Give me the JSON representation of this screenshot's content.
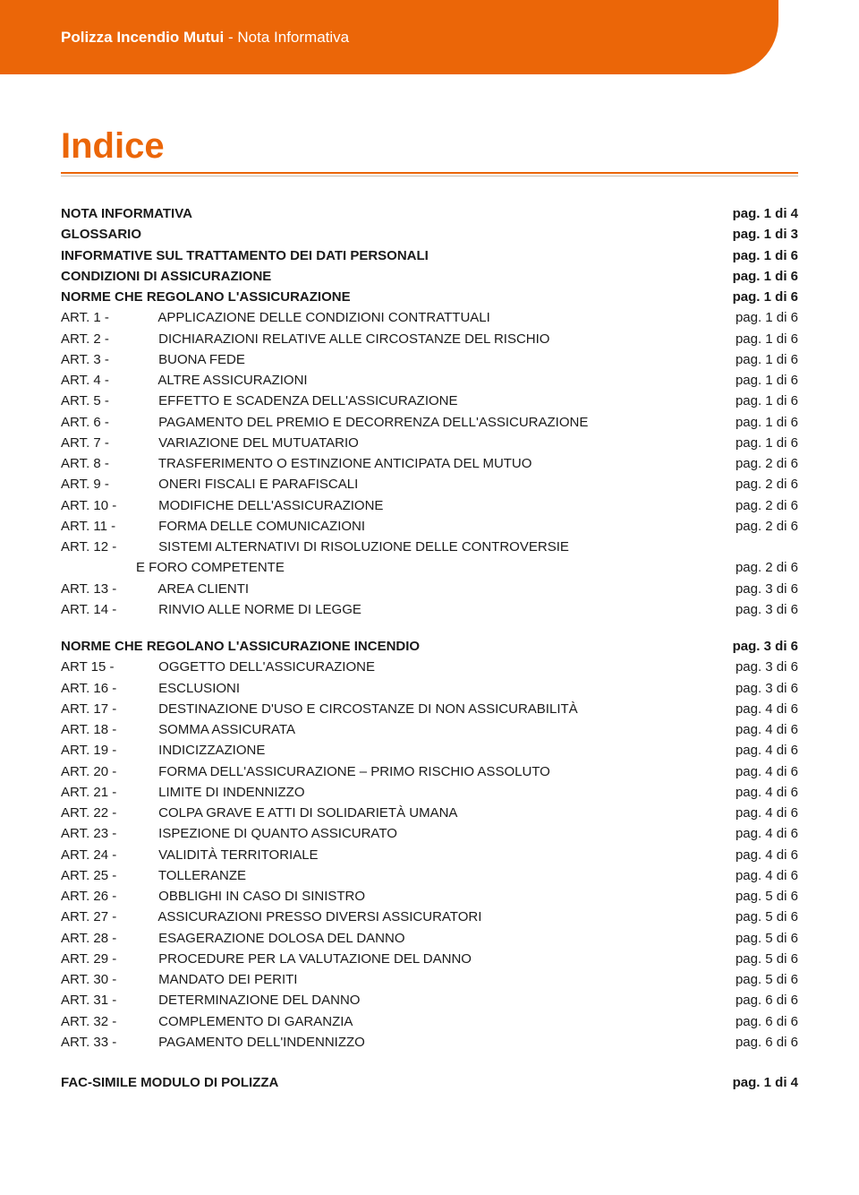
{
  "colors": {
    "brand": "#eb6608",
    "text": "#1a1a1a",
    "rule_light": "#c9bcae",
    "bg": "#ffffff",
    "header_text": "#ffffff"
  },
  "typography": {
    "body_font": "Arial",
    "title_size_pt": 30,
    "body_size_pt": 11,
    "header_size_pt": 13
  },
  "header": {
    "bold": "Polizza Incendio Mutui",
    "rest": " - Nota Informativa"
  },
  "title": "Indice",
  "sections": [
    {
      "rows": [
        {
          "label": "NOTA INFORMATIVA",
          "page": "pag. 1 di 4",
          "bold": true
        },
        {
          "label": "GLOSSARIO",
          "page": "pag. 1 di 3",
          "bold": true
        },
        {
          "label": "INFORMATIVE SUL TRATTAMENTO DEI DATI PERSONALI",
          "page": "pag. 1 di 6",
          "bold": true
        },
        {
          "label": "CONDIZIONI DI ASSICURAZIONE",
          "page": "pag. 1 di 6",
          "bold": true
        },
        {
          "label": "NORME CHE REGOLANO L'ASSICURAZIONE",
          "page": "pag. 1 di 6",
          "bold": true
        },
        {
          "prefix": "ART. 1   -",
          "label": "APPLICAZIONE DELLE CONDIZIONI CONTRATTUALI",
          "page": "pag. 1 di 6"
        },
        {
          "prefix": "ART. 2   -",
          "label": "DICHIARAZIONI RELATIVE ALLE CIRCOSTANZE DEL RISCHIO",
          "page": "pag. 1 di 6"
        },
        {
          "prefix": "ART. 3   -",
          "label": "BUONA FEDE",
          "page": "pag. 1 di 6"
        },
        {
          "prefix": "ART. 4   -",
          "label": "ALTRE ASSICURAZIONI",
          "page": "pag. 1 di 6"
        },
        {
          "prefix": "ART. 5   -",
          "label": "EFFETTO E SCADENZA DELL'ASSICURAZIONE",
          "page": "pag. 1 di 6"
        },
        {
          "prefix": "ART. 6   -",
          "label": "PAGAMENTO DEL PREMIO E DECORRENZA DELL'ASSICURAZIONE",
          "page": "pag. 1 di 6"
        },
        {
          "prefix": "ART. 7   -",
          "label": "VARIAZIONE DEL MUTUATARIO",
          "page": "pag. 1 di 6"
        },
        {
          "prefix": "ART. 8   -",
          "label": "TRASFERIMENTO O ESTINZIONE ANTICIPATA DEL MUTUO",
          "page": "pag. 2 di 6"
        },
        {
          "prefix": "ART. 9   -",
          "label": "ONERI FISCALI E PARAFISCALI",
          "page": "pag. 2 di 6"
        },
        {
          "prefix": "ART. 10 -",
          "label": "MODIFICHE DELL'ASSICURAZIONE",
          "page": "pag. 2 di 6"
        },
        {
          "prefix": "ART. 11 -",
          "label": "FORMA DELLE COMUNICAZIONI",
          "page": "pag. 2 di 6"
        },
        {
          "prefix": "ART. 12 -",
          "label": "SISTEMI ALTERNATIVI DI RISOLUZIONE DELLE CONTROVERSIE",
          "page": ""
        },
        {
          "indent": true,
          "label": "E FORO COMPETENTE",
          "page": "pag. 2 di 6"
        },
        {
          "prefix": "ART. 13 -",
          "label": "AREA CLIENTI",
          "page": "pag. 3 di 6"
        },
        {
          "prefix": "ART. 14 -",
          "label": "RINVIO ALLE NORME DI LEGGE",
          "page": "pag. 3 di 6"
        }
      ]
    },
    {
      "rows": [
        {
          "label": "NORME CHE REGOLANO L'ASSICURAZIONE INCENDIO",
          "page": "pag. 3 di 6",
          "bold": true
        },
        {
          "prefix": "ART  15 -",
          "label": "OGGETTO DELL'ASSICURAZIONE",
          "page": "pag. 3 di 6"
        },
        {
          "prefix": "ART. 16 -",
          "label": "ESCLUSIONI",
          "page": "pag. 3 di 6"
        },
        {
          "prefix": "ART. 17 -",
          "label": "DESTINAZIONE D'USO E CIRCOSTANZE DI NON ASSICURABILITÀ",
          "page": "pag. 4 di 6"
        },
        {
          "prefix": "ART. 18 -",
          "label": "SOMMA ASSICURATA",
          "page": "pag. 4 di 6"
        },
        {
          "prefix": "ART. 19 -",
          "label": "INDICIZZAZIONE",
          "page": "pag. 4 di 6"
        },
        {
          "prefix": "ART. 20 -",
          "label": "FORMA DELL'ASSICURAZIONE – PRIMO RISCHIO ASSOLUTO",
          "page": "pag. 4 di 6"
        },
        {
          "prefix": "ART. 21 -",
          "label": "LIMITE DI INDENNIZZO",
          "page": "pag. 4 di 6"
        },
        {
          "prefix": "ART. 22 -",
          "label": "COLPA GRAVE E ATTI DI SOLIDARIETÀ UMANA",
          "page": "pag. 4 di 6"
        },
        {
          "prefix": "ART. 23 -",
          "label": "ISPEZIONE DI QUANTO ASSICURATO",
          "page": "pag. 4 di 6"
        },
        {
          "prefix": "ART. 24 -",
          "label": "VALIDITÀ TERRITORIALE",
          "page": "pag. 4 di 6"
        },
        {
          "prefix": "ART. 25 -",
          "label": "TOLLERANZE",
          "page": "pag. 4 di 6"
        },
        {
          "prefix": "ART. 26 -",
          "label": "OBBLIGHI IN CASO DI SINISTRO",
          "page": "pag. 5 di 6"
        },
        {
          "prefix": "ART. 27 -",
          "label": "ASSICURAZIONI PRESSO DIVERSI ASSICURATORI",
          "page": "pag. 5 di 6"
        },
        {
          "prefix": "ART. 28 -",
          "label": "ESAGERAZIONE DOLOSA DEL DANNO",
          "page": "pag. 5 di 6"
        },
        {
          "prefix": "ART. 29 -",
          "label": "PROCEDURE PER LA VALUTAZIONE DEL DANNO",
          "page": "pag. 5 di 6"
        },
        {
          "prefix": "ART. 30 -",
          "label": "MANDATO DEI PERITI",
          "page": "pag. 5 di 6"
        },
        {
          "prefix": "ART. 31 -",
          "label": "DETERMINAZIONE DEL DANNO",
          "page": "pag. 6 di 6"
        },
        {
          "prefix": "ART. 32 -",
          "label": "COMPLEMENTO DI GARANZIA",
          "page": "pag. 6 di 6"
        },
        {
          "prefix": "ART. 33 -",
          "label": "PAGAMENTO DELL'INDENNIZZO",
          "page": "pag. 6 di 6"
        }
      ]
    }
  ],
  "footer": {
    "label": "FAC-SIMILE MODULO DI POLIZZA",
    "page": "pag. 1 di 4",
    "bold": true
  }
}
